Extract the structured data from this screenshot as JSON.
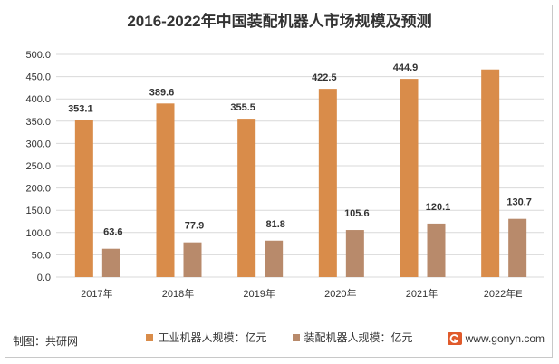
{
  "chart_data": {
    "type": "bar",
    "title": "2016-2022年中国装配机器人市场规模及预测",
    "categories": [
      "2017年",
      "2018年",
      "2019年",
      "2020年",
      "2021年",
      "2022年E"
    ],
    "series": [
      {
        "name": "工业机器人规模：亿元",
        "color": "#d98c4a",
        "values": [
          353.1,
          389.6,
          355.5,
          422.5,
          444.9,
          466.0
        ],
        "labels": [
          "353.1",
          "389.6",
          "355.5",
          "422.5",
          "444.9",
          ""
        ]
      },
      {
        "name": "装配机器人规模：亿元",
        "color": "#b88a6b",
        "values": [
          63.6,
          77.9,
          81.8,
          105.6,
          120.1,
          130.7
        ],
        "labels": [
          "63.6",
          "77.9",
          "81.8",
          "105.6",
          "120.1",
          "130.7"
        ]
      }
    ],
    "ylim": [
      0,
      500
    ],
    "yticks": [
      "0.0",
      "50.0",
      "100.0",
      "150.0",
      "200.0",
      "250.0",
      "300.0",
      "350.0",
      "400.0",
      "450.0",
      "500.0"
    ],
    "grid": true,
    "legend_position": "bottom"
  },
  "footer": {
    "source": "制图：共研网",
    "website": "www.gonyn.com"
  },
  "colors": {
    "accent_orange": "#d98c4a",
    "accent_brown": "#b88a6b",
    "logo_red": "#e05a2b"
  }
}
